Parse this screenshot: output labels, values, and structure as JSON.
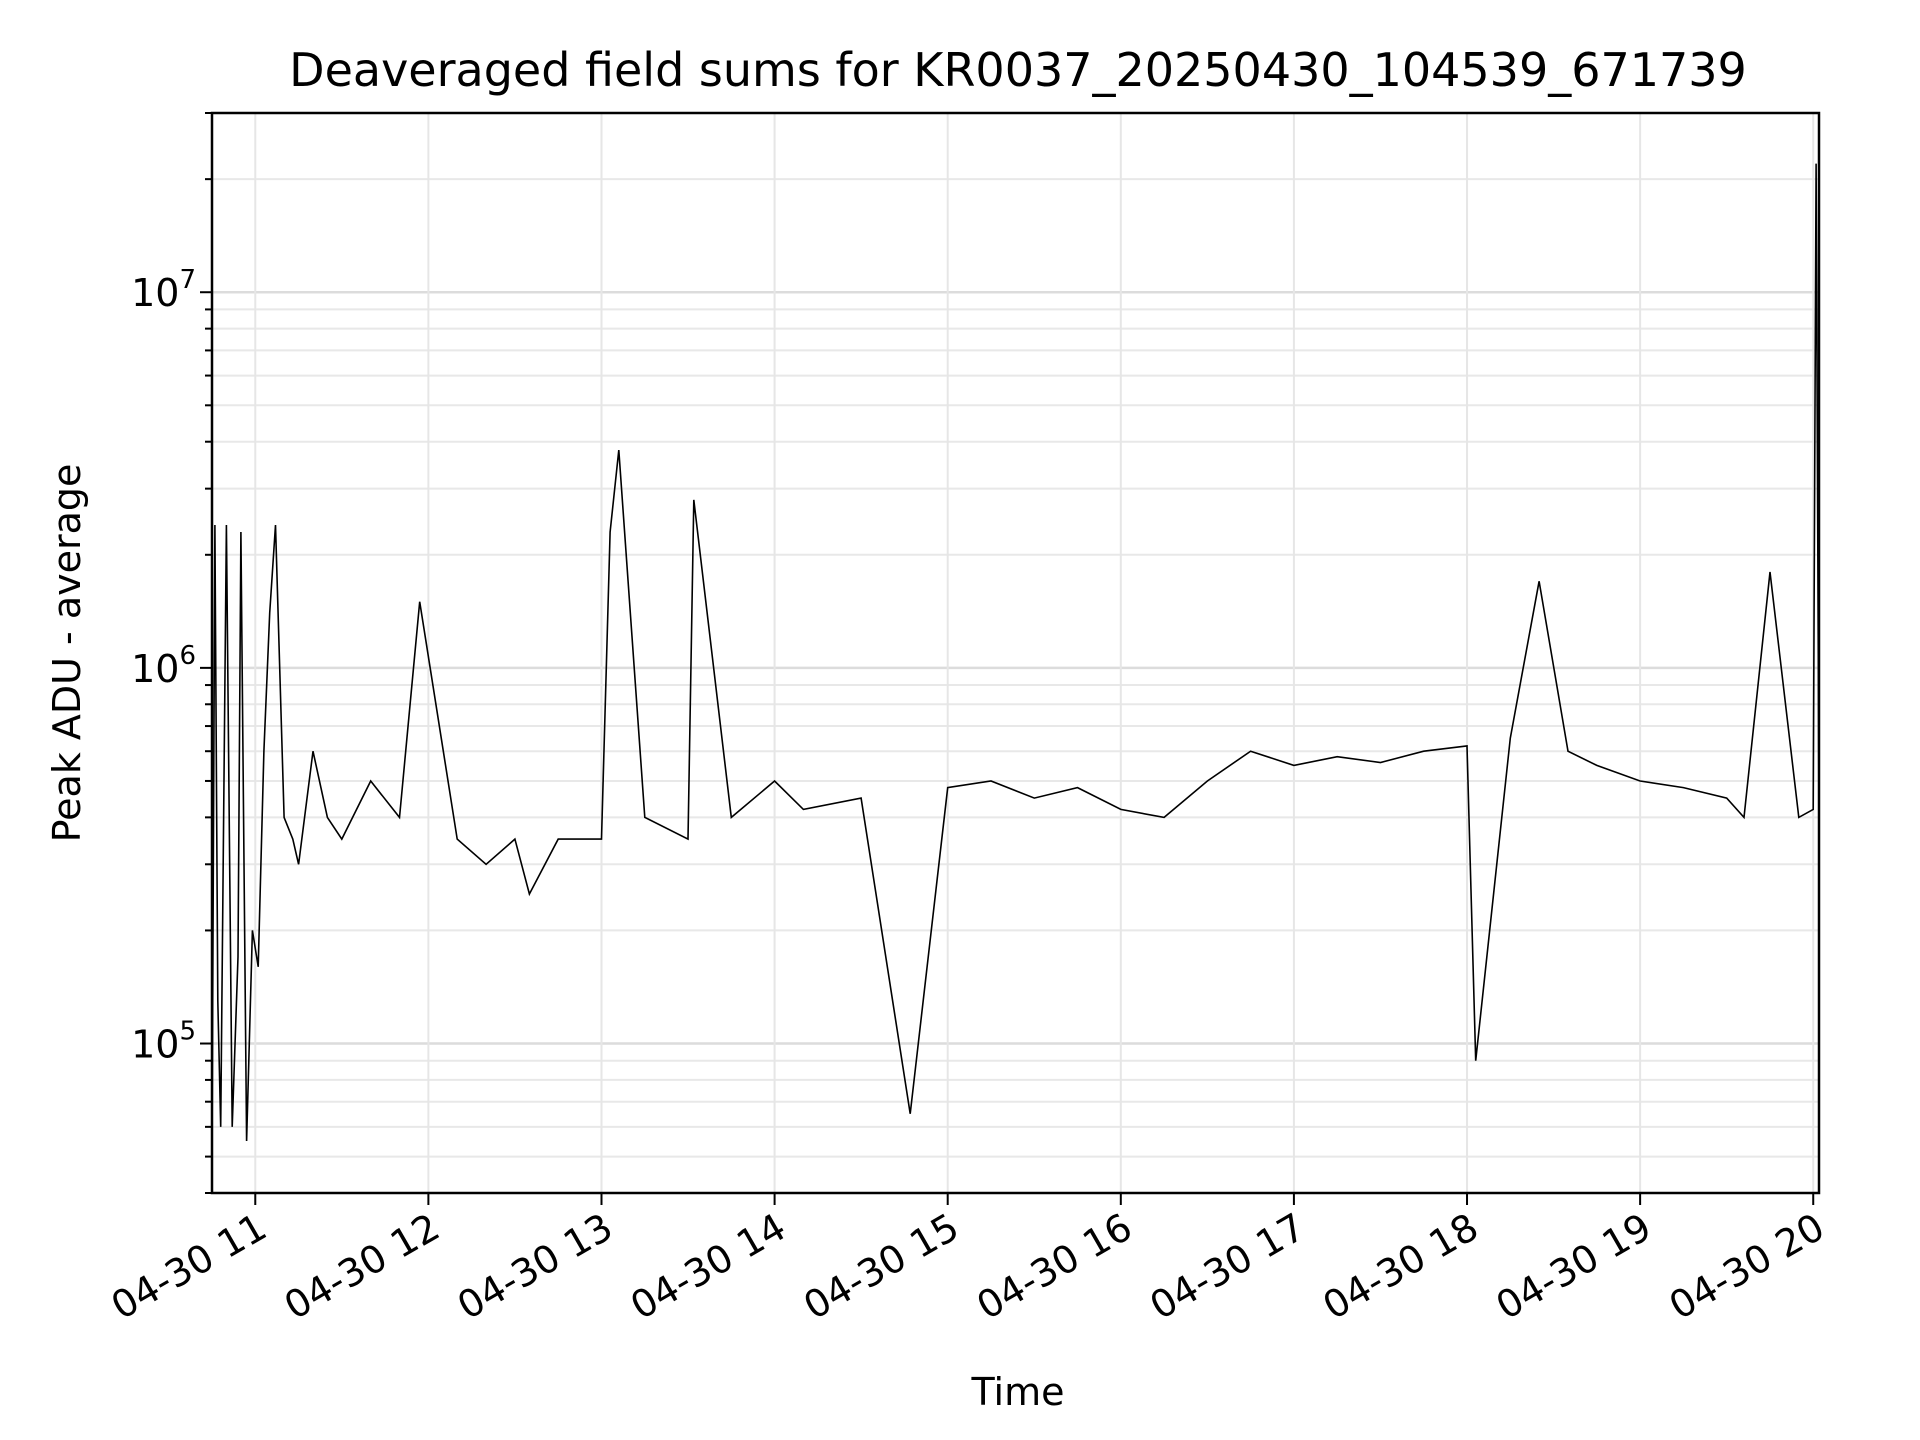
{
  "chart_data": {
    "type": "line",
    "title": "Deaveraged field sums for KR0037_20250430_104539_671739",
    "xlabel": "Time",
    "ylabel": "Peak ADU - average",
    "y_scale": "log",
    "ylim": [
      40000,
      30000000
    ],
    "xlim": [
      "04-30 10:45",
      "04-30 20:02"
    ],
    "grid": true,
    "line_color": "#000000",
    "x_ticks": [
      "04-30 11",
      "04-30 12",
      "04-30 13",
      "04-30 14",
      "04-30 15",
      "04-30 16",
      "04-30 17",
      "04-30 18",
      "04-30 19",
      "04-30 20"
    ],
    "y_ticks": [
      {
        "base": "10",
        "exp": "5",
        "value": 100000
      },
      {
        "base": "10",
        "exp": "6",
        "value": 1000000
      },
      {
        "base": "10",
        "exp": "7",
        "value": 10000000
      }
    ],
    "series": [
      {
        "x": [
          "04-30 10:45",
          "04-30 10:46",
          "04-30 10:47",
          "04-30 10:48",
          "04-30 10:50",
          "04-30 10:52",
          "04-30 10:54",
          "04-30 10:55",
          "04-30 10:57",
          "04-30 10:59",
          "04-30 11:01",
          "04-30 11:03",
          "04-30 11:05",
          "04-30 11:07",
          "04-30 11:10",
          "04-30 11:13",
          "04-30 11:15",
          "04-30 11:20",
          "04-30 11:25",
          "04-30 11:30",
          "04-30 11:40",
          "04-30 11:50",
          "04-30 11:57",
          "04-30 12:10",
          "04-30 12:20",
          "04-30 12:30",
          "04-30 12:35",
          "04-30 12:45",
          "04-30 13:00",
          "04-30 13:03",
          "04-30 13:06",
          "04-30 13:15",
          "04-30 13:30",
          "04-30 13:32",
          "04-30 13:45",
          "04-30 14:00",
          "04-30 14:10",
          "04-30 14:30",
          "04-30 14:47",
          "04-30 15:00",
          "04-30 15:15",
          "04-30 15:30",
          "04-30 15:45",
          "04-30 16:00",
          "04-30 16:15",
          "04-30 16:30",
          "04-30 16:45",
          "04-30 17:00",
          "04-30 17:15",
          "04-30 17:30",
          "04-30 17:45",
          "04-30 18:00",
          "04-30 18:03",
          "04-30 18:15",
          "04-30 18:25",
          "04-30 18:35",
          "04-30 18:45",
          "04-30 19:00",
          "04-30 19:15",
          "04-30 19:30",
          "04-30 19:36",
          "04-30 19:45",
          "04-30 19:55",
          "04-30 20:00",
          "04-30 20:01",
          "04-30 20:02"
        ],
        "y": [
          50000,
          2400000,
          130000,
          60000,
          2400000,
          60000,
          170000,
          2300000,
          55000,
          200000,
          160000,
          600000,
          1400000,
          2400000,
          400000,
          350000,
          300000,
          600000,
          400000,
          350000,
          500000,
          400000,
          1500000,
          350000,
          300000,
          350000,
          250000,
          350000,
          350000,
          2300000,
          3800000,
          400000,
          350000,
          2800000,
          400000,
          500000,
          420000,
          450000,
          65000,
          480000,
          500000,
          450000,
          480000,
          420000,
          400000,
          500000,
          600000,
          550000,
          580000,
          560000,
          600000,
          620000,
          90000,
          650000,
          1700000,
          600000,
          550000,
          500000,
          480000,
          450000,
          400000,
          1800000,
          400000,
          420000,
          22000000,
          400000
        ]
      }
    ]
  }
}
